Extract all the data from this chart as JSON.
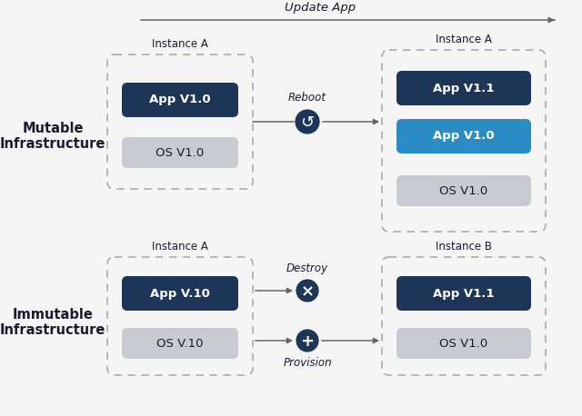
{
  "bg_color": "#f5f5f5",
  "dark_blue": "#1d3557",
  "bright_blue": "#2a8cc4",
  "gray_box": "#c8ccd2",
  "arrow_color": "#666666",
  "dashed_border": "#aaaaaa",
  "text_dark": "#1a1a2e",
  "text_white": "#ffffff",
  "top_arrow_label": "Update App",
  "mutable_label": "Mutable\nInfrastructure",
  "immutable_label": "Immutable\nInfrastructure",
  "reboot_label": "Reboot",
  "destroy_label": "Destroy",
  "provision_label": "Provision"
}
